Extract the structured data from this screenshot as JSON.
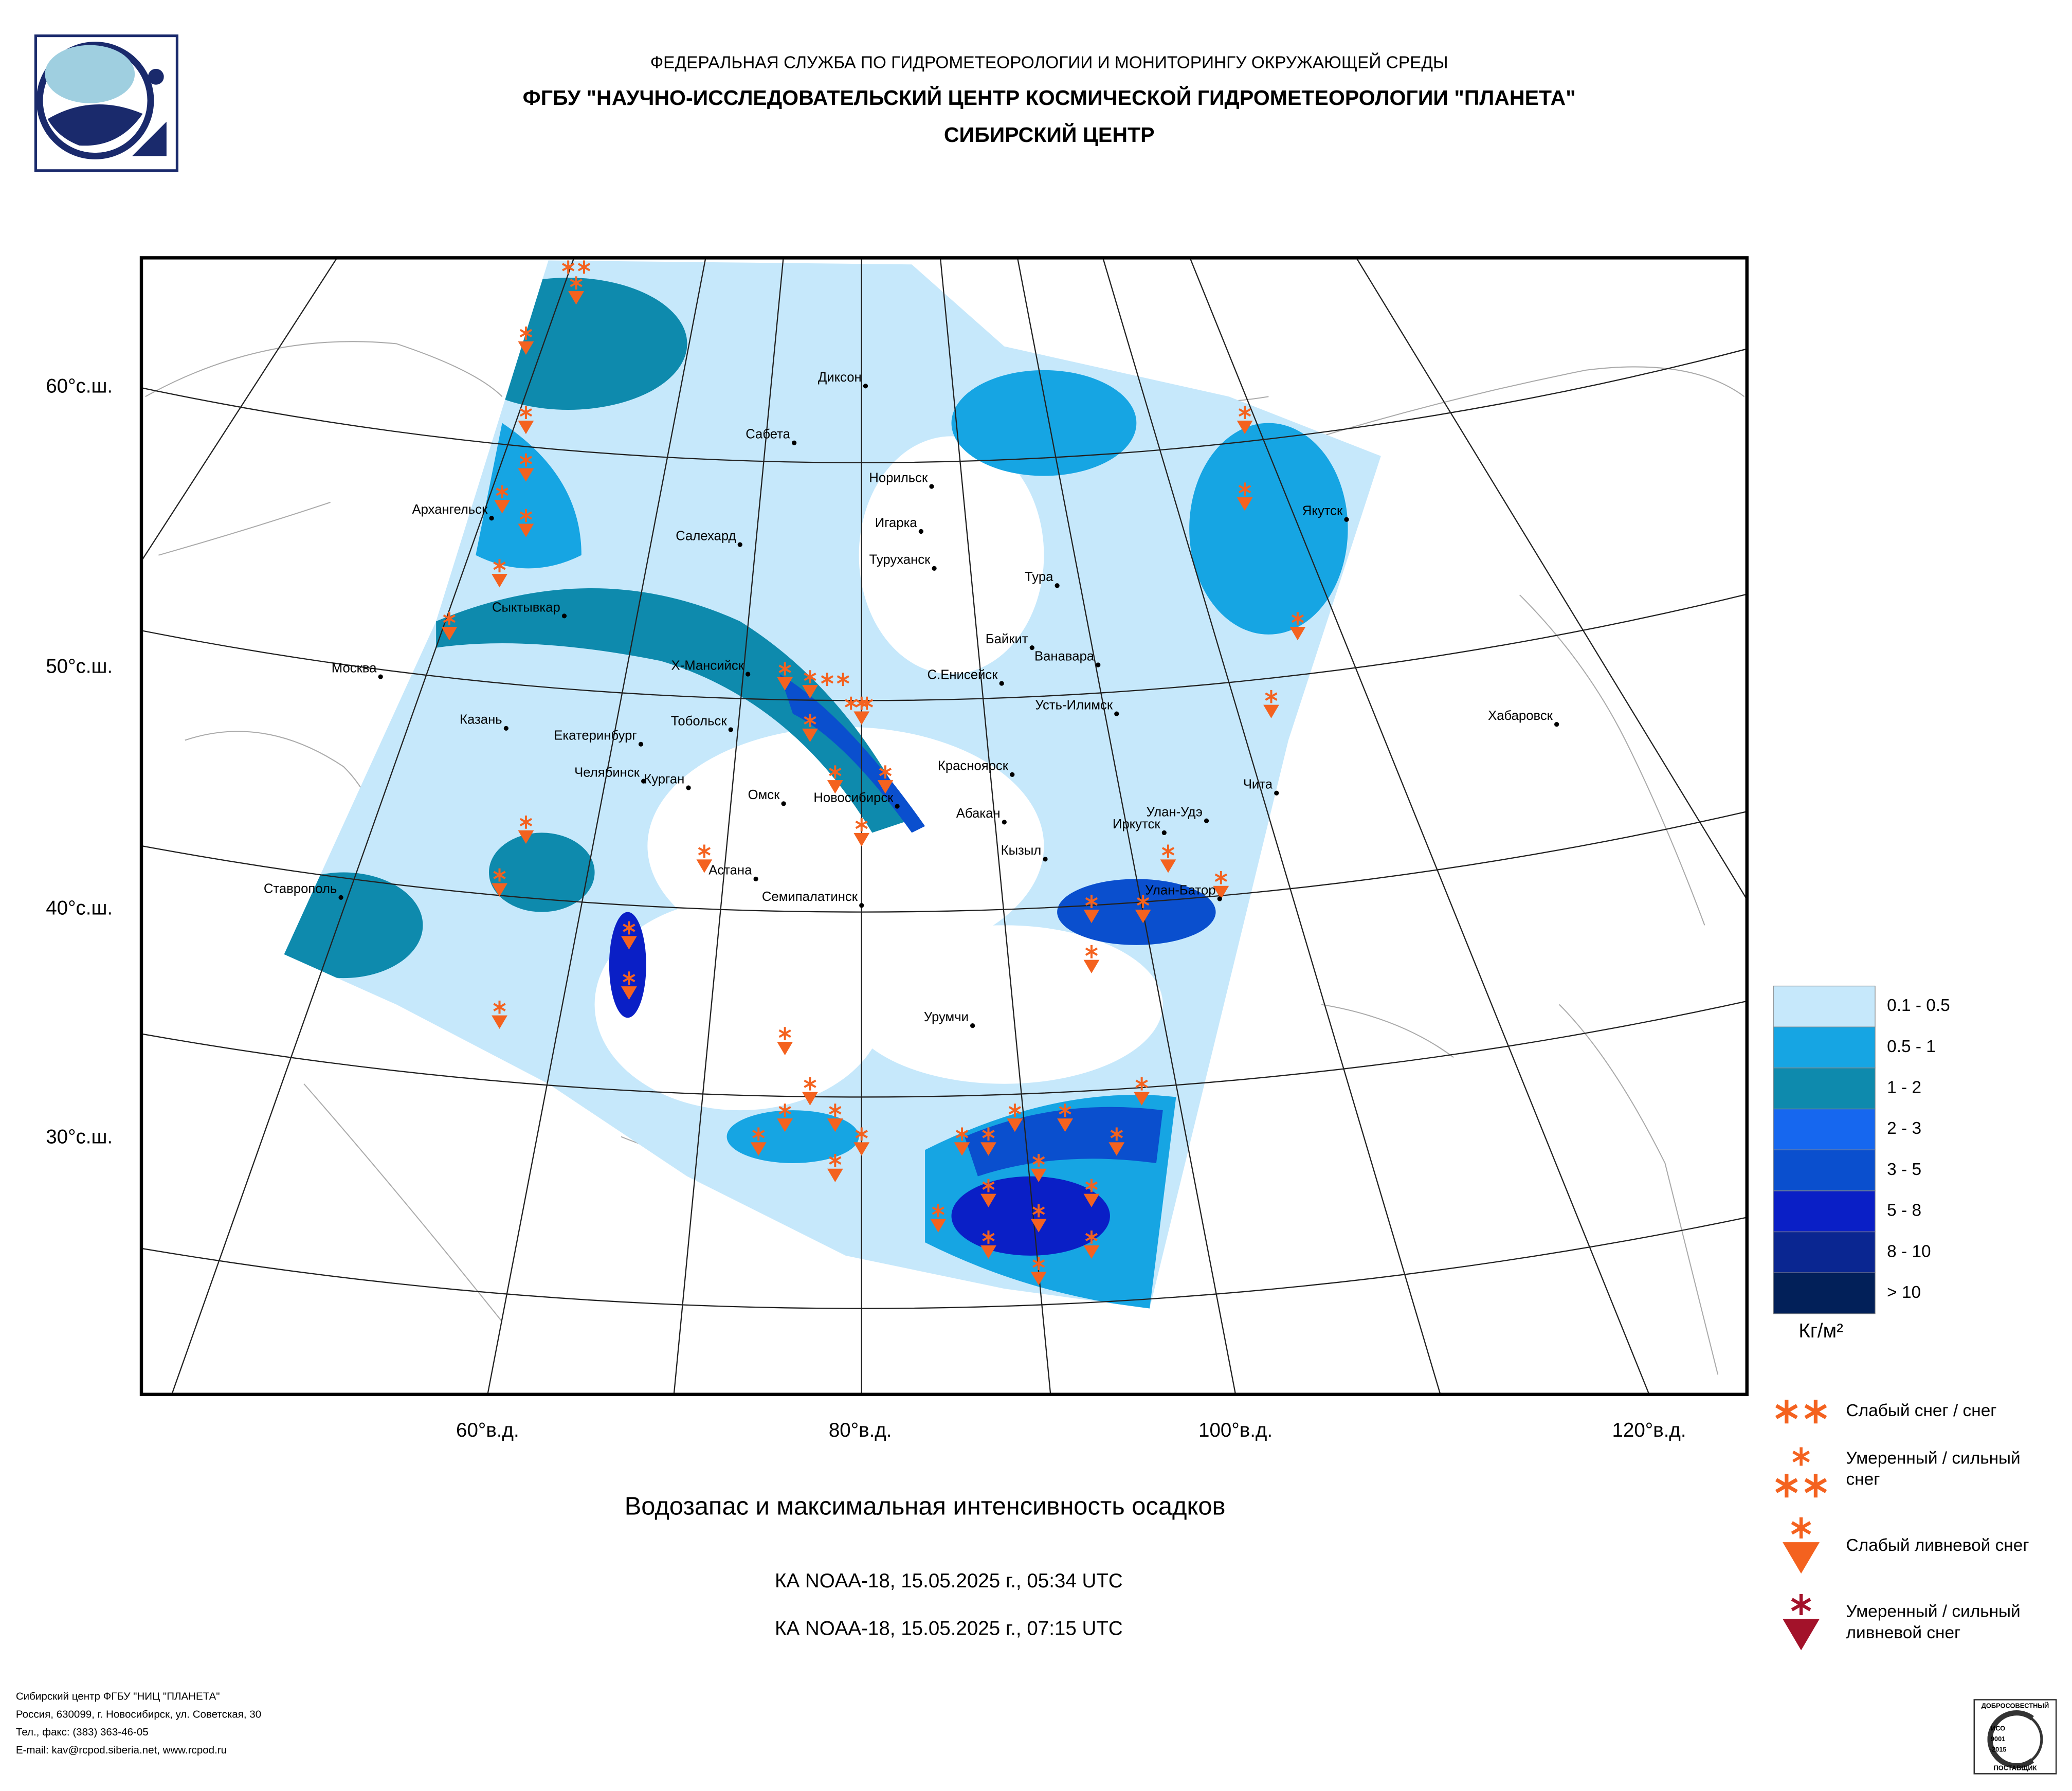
{
  "header": {
    "agency": "ФЕДЕРАЛЬНАЯ СЛУЖБА ПО ГИДРОМЕТЕОРОЛОГИИ И МОНИТОРИНГУ ОКРУЖАЮЩЕЙ СРЕДЫ",
    "institute": "ФГБУ \"НАУЧНО-ИССЛЕДОВАТЕЛЬСКИЙ ЦЕНТР КОСМИЧЕСКОЙ ГИДРОМЕТЕОРОЛОГИИ \"ПЛАНЕТА\"",
    "center": "СИБИРСКИЙ ЦЕНТР"
  },
  "map": {
    "lat_labels": [
      "60°с.ш.",
      "50°с.ш.",
      "40°с.ш.",
      "30°с.ш."
    ],
    "lon_labels": [
      "60°в.д.",
      "80°в.д.",
      "100°в.д.",
      "120°в.д."
    ],
    "cities": [
      "Диксон",
      "Сабета",
      "Норильск",
      "Игарка",
      "Туруханск",
      "Салехард",
      "Архангельск",
      "Тура",
      "Сыктывкар",
      "Байкит",
      "Ванавара",
      "Москва",
      "Х-Мансийск",
      "С.Енисейск",
      "Усть-Илимск",
      "Казань",
      "Тобольск",
      "Хабаровск",
      "Екатеринбург",
      "Красноярск",
      "Челябинск",
      "Чита",
      "Курган",
      "Омск",
      "Новосибирск",
      "Улан-Удэ",
      "Абакан",
      "Иркутск",
      "Кызыл",
      "Астана",
      "Ставрополь",
      "Улан-Батор",
      "Семипалатинск",
      "Урумчи",
      "Якутск"
    ]
  },
  "title": "Водозапас и максимальная интенсивность осадков",
  "passes": [
    "КА NOAA-18, 15.05.2025 г., 05:34 UTC",
    "КА NOAA-18, 15.05.2025 г., 07:15 UTC"
  ],
  "legend": {
    "water": {
      "classes": [
        {
          "label": "0.1 - 0.5",
          "color": "#c6e8fb"
        },
        {
          "label": "0.5 - 1",
          "color": "#16a5e3"
        },
        {
          "label": "1 - 2",
          "color": "#0e8aad"
        },
        {
          "label": "2 - 3",
          "color": "#1667ef"
        },
        {
          "label": "3 - 5",
          "color": "#0a4fce"
        },
        {
          "label": "5 - 8",
          "color": "#0a1fc6"
        },
        {
          "label": "8 - 10",
          "color": "#0a2691"
        },
        {
          "label": "> 10",
          "color": "#022059"
        }
      ],
      "unit": "Кг/м²"
    },
    "snow": [
      {
        "lines": [
          "Слабый снег / снег"
        ],
        "color": "#f4621f"
      },
      {
        "lines": [
          "Умеренный / сильный",
          "снег"
        ],
        "color": "#f4621f"
      },
      {
        "lines": [
          "Слабый ливневой снег"
        ],
        "color": "#f4621f"
      },
      {
        "lines": [
          "Умеренный / сильный",
          "ливневой снег"
        ],
        "color": "#a3122a"
      }
    ]
  },
  "footer": [
    "Сибирский центр ФГБУ \"НИЦ \"ПЛАНЕТА\"",
    "Россия, 630099, г. Новосибирск, ул. Советская, 30",
    "Тел., факс: (383) 363-46-05",
    "E-mail: kav@rcpod.siberia.net, www.rcpod.ru"
  ],
  "certificate": [
    "ДОБРОСОВЕСТНЫЙ",
    "ИСО",
    "9001",
    "-2015",
    "ПОСТАВЩИК"
  ]
}
